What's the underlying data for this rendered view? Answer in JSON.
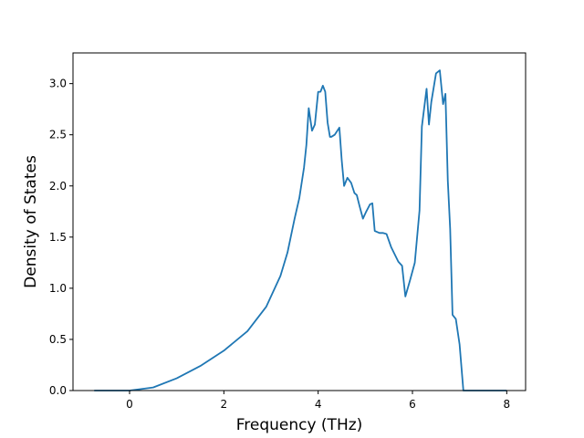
{
  "chart_data": {
    "type": "line",
    "title": "",
    "xlabel": "Frequency (THz)",
    "ylabel": "Density of States",
    "xlim": [
      -1.2,
      8.4
    ],
    "ylim": [
      0,
      3.3
    ],
    "xticks": [
      0,
      2,
      4,
      6,
      8
    ],
    "xtick_labels": [
      "0",
      "2",
      "4",
      "6",
      "8"
    ],
    "yticks": [
      0.0,
      0.5,
      1.0,
      1.5,
      2.0,
      2.5,
      3.0
    ],
    "ytick_labels": [
      "0.0",
      "0.5",
      "1.0",
      "1.5",
      "2.0",
      "2.5",
      "3.0"
    ],
    "grid": false,
    "legend": "none",
    "line_color": "#1f77b4",
    "series": [
      {
        "x": [
          -0.75,
          0.0,
          0.5,
          1.0,
          1.5,
          2.0,
          2.5,
          2.9,
          3.2,
          3.35,
          3.5,
          3.6,
          3.7,
          3.75,
          3.8,
          3.87,
          3.93,
          4.0,
          4.05,
          4.1,
          4.15,
          4.2,
          4.25,
          4.28,
          4.35,
          4.45,
          4.5,
          4.55,
          4.62,
          4.7,
          4.77,
          4.82,
          4.88,
          4.95,
          5.02,
          5.1,
          5.15,
          5.2,
          5.25,
          5.3,
          5.38,
          5.45,
          5.55,
          5.7,
          5.78,
          5.85,
          5.95,
          6.05,
          6.15,
          6.2,
          6.3,
          6.35,
          6.4,
          6.5,
          6.58,
          6.65,
          6.7,
          6.75,
          6.8,
          6.85,
          6.92,
          7.0,
          7.08,
          7.13,
          7.18,
          7.22,
          7.25,
          7.3,
          7.6,
          8.0
        ],
        "y": [
          0.0,
          0.0,
          0.03,
          0.12,
          0.24,
          0.39,
          0.58,
          0.82,
          1.12,
          1.35,
          1.68,
          1.88,
          2.18,
          2.4,
          2.76,
          2.54,
          2.6,
          2.92,
          2.92,
          2.98,
          2.92,
          2.62,
          2.48,
          2.48,
          2.5,
          2.57,
          2.25,
          2.0,
          2.08,
          2.03,
          1.93,
          1.91,
          1.8,
          1.68,
          1.75,
          1.82,
          1.83,
          1.56,
          1.55,
          1.54,
          1.54,
          1.53,
          1.4,
          1.26,
          1.22,
          0.92,
          1.08,
          1.25,
          1.76,
          2.58,
          2.95,
          2.6,
          2.82,
          3.1,
          3.13,
          2.8,
          2.9,
          2.05,
          1.58,
          0.74,
          0.7,
          0.45,
          0.0,
          0.0,
          0.0,
          0.0,
          0.0,
          0.0,
          0.0,
          0.0
        ]
      }
    ]
  }
}
